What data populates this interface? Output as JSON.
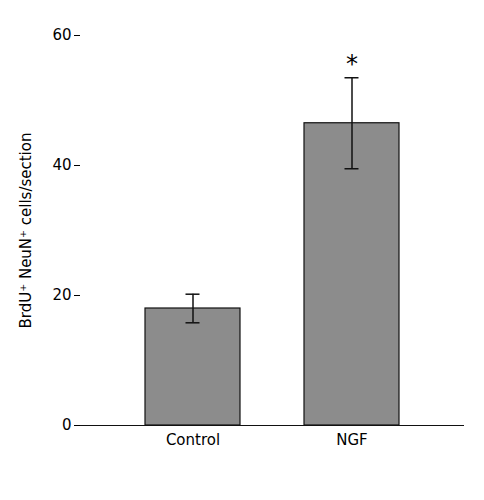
{
  "chart_data": {
    "type": "bar",
    "categories": [
      "Control",
      "NGF"
    ],
    "values": [
      18.0,
      46.5
    ],
    "errors": [
      2.2,
      7.0
    ],
    "color": "#8c8c8c",
    "ylabel": "BrdU⁺ NeuN⁺ cells/section",
    "ylim": [
      0,
      60
    ],
    "yticks": [
      0,
      20,
      40,
      60
    ],
    "annotations": [
      {
        "text": "*",
        "category": "NGF"
      }
    ]
  }
}
